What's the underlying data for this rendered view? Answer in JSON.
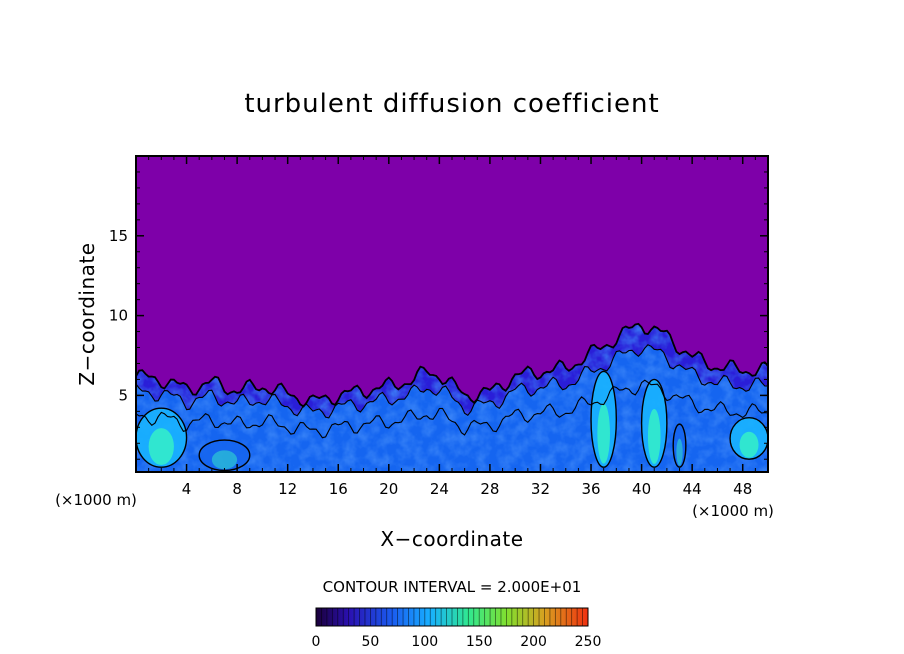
{
  "chart_data": {
    "type": "heatmap",
    "title": "turbulent diffusion coefficient",
    "xlabel": "X−coordinate",
    "ylabel": "Z−coordinate",
    "x_unit": "(×1000 m)",
    "x_unit_right": "(×1000 m)",
    "xlim": [
      0,
      50
    ],
    "ylim": [
      0.2,
      20
    ],
    "xticks": [
      4,
      8,
      12,
      16,
      20,
      24,
      28,
      32,
      36,
      40,
      44,
      48
    ],
    "xtick_labels": [
      "4",
      "8",
      "12",
      "16",
      "20",
      "24",
      "28",
      "32",
      "36",
      "40",
      "44",
      "48"
    ],
    "yticks": [
      5,
      10,
      15
    ],
    "ytick_labels": [
      "5",
      "10",
      "15"
    ],
    "contour_interval_text": "CONTOUR INTERVAL = 2.000E+01",
    "contour_interval": 20,
    "colorbar": {
      "range": [
        0,
        250
      ],
      "ticks": [
        0,
        50,
        100,
        150,
        200,
        250
      ],
      "tick_labels": [
        "0",
        "50",
        "100",
        "150",
        "200",
        "250"
      ]
    },
    "background_value": 0,
    "turbulent_layer_top": [
      [
        0,
        6.2
      ],
      [
        2,
        6.0
      ],
      [
        4,
        5.4
      ],
      [
        6,
        5.8
      ],
      [
        8,
        5.3
      ],
      [
        10,
        5.6
      ],
      [
        12,
        5.1
      ],
      [
        14,
        4.6
      ],
      [
        16,
        5.0
      ],
      [
        18,
        5.3
      ],
      [
        20,
        5.6
      ],
      [
        22,
        6.0
      ],
      [
        23,
        6.5
      ],
      [
        24,
        6.3
      ],
      [
        26,
        5.0
      ],
      [
        28,
        5.2
      ],
      [
        30,
        6.2
      ],
      [
        32,
        6.5
      ],
      [
        34,
        6.7
      ],
      [
        36,
        7.6
      ],
      [
        38,
        8.6
      ],
      [
        40,
        9.5
      ],
      [
        42,
        8.7
      ],
      [
        44,
        7.4
      ],
      [
        46,
        6.8
      ],
      [
        48,
        6.6
      ],
      [
        50,
        6.6
      ]
    ],
    "high_zones": [
      {
        "x": [
          0,
          4
        ],
        "z": [
          0.5,
          4.2
        ],
        "level": 100
      },
      {
        "x": [
          5,
          9
        ],
        "z": [
          0.3,
          2.2
        ],
        "level": 80
      },
      {
        "x": [
          36,
          38
        ],
        "z": [
          0.5,
          6.5
        ],
        "level": 100
      },
      {
        "x": [
          40,
          42
        ],
        "z": [
          0.5,
          6.0
        ],
        "level": 120
      },
      {
        "x": [
          42.5,
          43.5
        ],
        "z": [
          0.5,
          3.2
        ],
        "level": 90
      },
      {
        "x": [
          47,
          50
        ],
        "z": [
          1.0,
          3.6
        ],
        "level": 100
      }
    ],
    "colors": {
      "background": "#7e00a9",
      "low": "#2a1ed8",
      "mid": "#1565f0",
      "high": "#18b4ff",
      "peak": "#35f0c8",
      "frame": "#000000"
    }
  }
}
